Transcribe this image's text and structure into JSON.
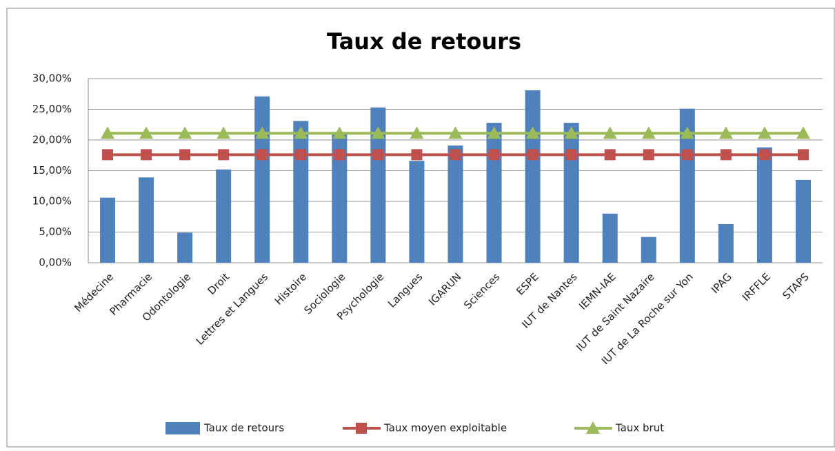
{
  "chart_data": {
    "type": "bar",
    "title": "Taux de retours",
    "categories": [
      "Médecine",
      "Pharmacie",
      "Odontologie",
      "Droit",
      "Lettres et Langues",
      "Histoire",
      "Sociologie",
      "Psychologie",
      "Langues",
      "IGARUN",
      "Sciences",
      "ESPE",
      "IUT de Nantes",
      "IEMN-IAE",
      "IUT de Saint Nazaire",
      "IUT de La Roche sur Yon",
      "IPAG",
      "IRFFLE",
      "STAPS"
    ],
    "series": [
      {
        "name": "Taux de retours",
        "type": "bar",
        "color": "#4f81bd",
        "values": [
          10.6,
          13.9,
          4.9,
          15.2,
          27.1,
          23.1,
          21.0,
          25.3,
          16.6,
          19.1,
          22.8,
          28.1,
          22.8,
          8.0,
          4.2,
          25.1,
          6.3,
          18.8,
          13.5
        ]
      },
      {
        "name": "Taux moyen exploitable",
        "type": "line",
        "marker": "square",
        "color": "#c0504d",
        "values": [
          17.6,
          17.6,
          17.6,
          17.6,
          17.6,
          17.6,
          17.6,
          17.6,
          17.6,
          17.6,
          17.6,
          17.6,
          17.6,
          17.6,
          17.6,
          17.6,
          17.6,
          17.6,
          17.6
        ]
      },
      {
        "name": "Taux brut",
        "type": "line",
        "marker": "triangle",
        "color": "#9bbb59",
        "values": [
          21.1,
          21.1,
          21.1,
          21.1,
          21.1,
          21.1,
          21.1,
          21.1,
          21.1,
          21.1,
          21.1,
          21.1,
          21.1,
          21.1,
          21.1,
          21.1,
          21.1,
          21.1,
          21.1
        ]
      }
    ],
    "ylim": [
      0,
      30
    ],
    "yticks": [
      {
        "value": 0,
        "label": "0,00%"
      },
      {
        "value": 5,
        "label": "5,00%"
      },
      {
        "value": 10,
        "label": "10,00%"
      },
      {
        "value": 15,
        "label": "15,00%"
      },
      {
        "value": 20,
        "label": "20,00%"
      },
      {
        "value": 25,
        "label": "25,00%"
      },
      {
        "value": 30,
        "label": "30,00%"
      }
    ],
    "grid": true,
    "legend": "bottom"
  }
}
